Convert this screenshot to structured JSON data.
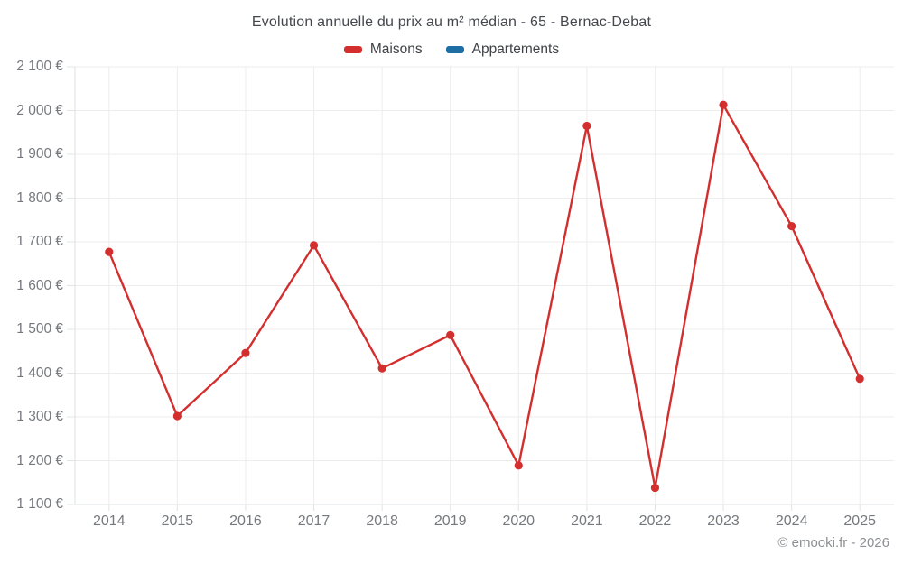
{
  "title": "Evolution annuelle du prix au m² médian - 65 - Bernac-Debat",
  "footer": "© emooki.fr - 2026",
  "legend": [
    {
      "label": "Maisons",
      "color": "#d32f2f"
    },
    {
      "label": "Appartements",
      "color": "#1c6ea4"
    }
  ],
  "chart_data": {
    "type": "line",
    "title": "Evolution annuelle du prix au m² médian - 65 - Bernac-Debat",
    "categories": [
      "2014",
      "2015",
      "2016",
      "2017",
      "2018",
      "2019",
      "2020",
      "2021",
      "2022",
      "2023",
      "2024",
      "2025"
    ],
    "series": [
      {
        "name": "Maisons",
        "color": "#d32f2f",
        "values": [
          1677,
          1302,
          1446,
          1692,
          1411,
          1487,
          1189,
          1965,
          1138,
          2013,
          1736,
          1387
        ]
      },
      {
        "name": "Appartements",
        "color": "#1c6ea4",
        "values": []
      }
    ],
    "xlabel": "",
    "ylabel": "",
    "ylim": [
      1100,
      2100
    ],
    "y_ticks": [
      2100,
      2000,
      1900,
      1800,
      1700,
      1600,
      1500,
      1400,
      1300,
      1200,
      1100
    ],
    "y_tick_labels": [
      "2 100 €",
      "2 000 €",
      "1 900 €",
      "1 800 €",
      "1 700 €",
      "1 600 €",
      "1 500 €",
      "1 400 €",
      "1 300 €",
      "1 200 €",
      "1 100 €"
    ],
    "grid": true,
    "legend_position": "top",
    "currency": "€"
  },
  "colors": {
    "grid": "#ededed",
    "axis": "#dfe1e3",
    "tick": "#e3e4e6"
  }
}
